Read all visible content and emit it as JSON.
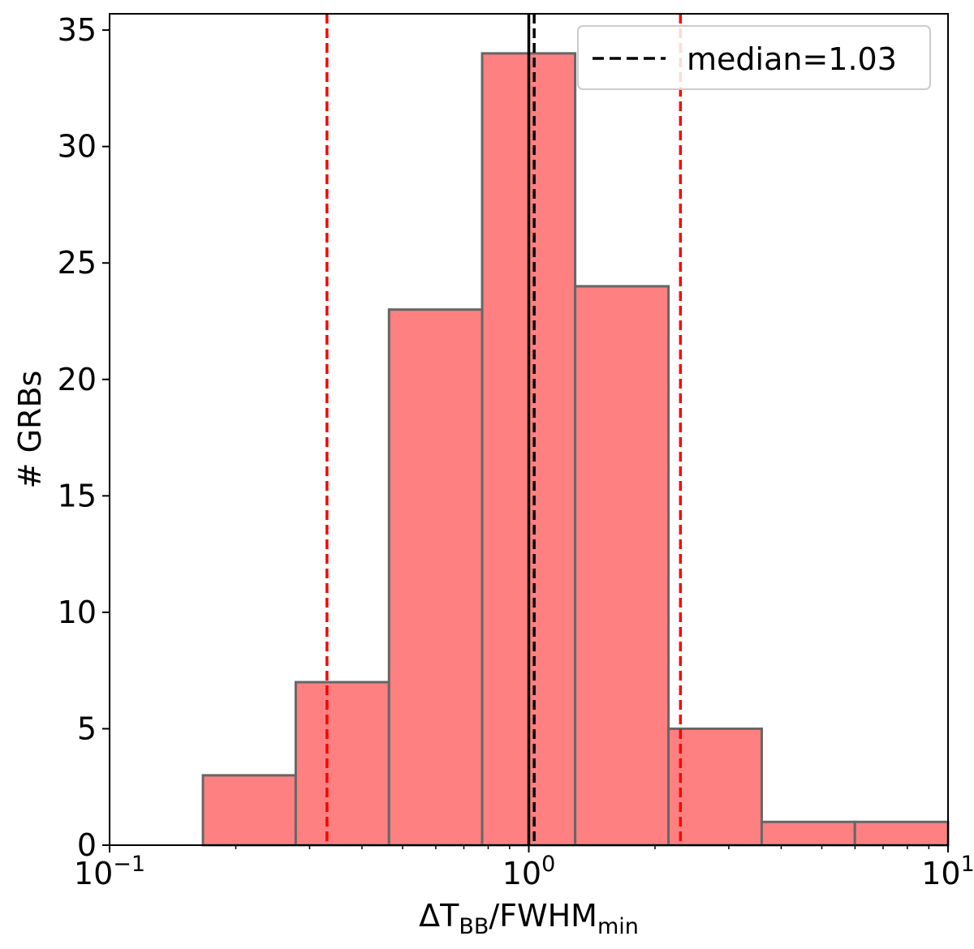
{
  "chart_data": {
    "type": "bar",
    "subtype": "histogram",
    "xscale": "log",
    "xlim": [
      0.1,
      10
    ],
    "ylim": [
      0,
      35.7
    ],
    "xlabel": {
      "main": "ΔT",
      "sub1": "BB",
      "mid": "/FWHM",
      "sub2": "min"
    },
    "ylabel": "# GRBs",
    "x_ticks": [
      {
        "value": 0.1,
        "base": "10",
        "exp": "−1"
      },
      {
        "value": 1,
        "base": "10",
        "exp": "0"
      },
      {
        "value": 10,
        "base": "10",
        "exp": "1"
      }
    ],
    "y_ticks": [
      0,
      5,
      10,
      15,
      20,
      25,
      30,
      35
    ],
    "bins": [
      {
        "left": 0.167,
        "right": 0.278,
        "count": 3
      },
      {
        "left": 0.278,
        "right": 0.464,
        "count": 7
      },
      {
        "left": 0.464,
        "right": 0.774,
        "count": 23
      },
      {
        "left": 0.774,
        "right": 1.29,
        "count": 34
      },
      {
        "left": 1.29,
        "right": 2.154,
        "count": 24
      },
      {
        "left": 2.154,
        "right": 3.594,
        "count": 5
      },
      {
        "left": 3.594,
        "right": 5.995,
        "count": 1
      },
      {
        "left": 5.995,
        "right": 10.0,
        "count": 1
      }
    ],
    "bar_color": "#ff8080",
    "bar_edge_color": "#666666",
    "median": 1.03,
    "reference_line": 1.0,
    "percentile_lines": [
      0.33,
      2.3
    ],
    "percentile_color": "#ff0000",
    "legend": {
      "label": "median=1.03",
      "position": "top-right"
    }
  }
}
